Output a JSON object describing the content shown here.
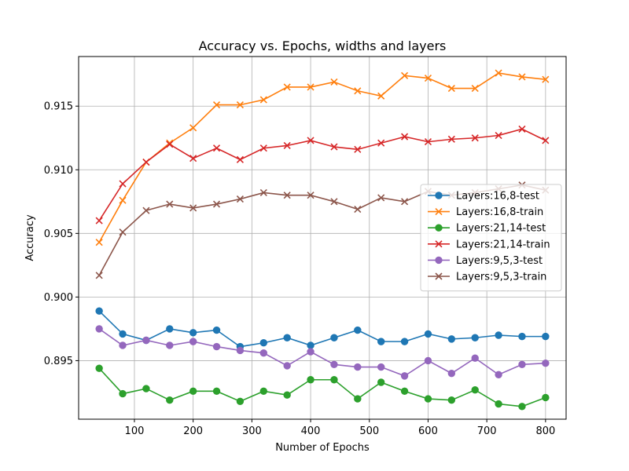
{
  "chart_data": {
    "type": "line",
    "title": "Accuracy vs. Epochs, widths and layers",
    "xlabel": "Number of Epochs",
    "ylabel": "Accuracy",
    "xlim": [
      5,
      835
    ],
    "ylim": [
      0.8904,
      0.9189
    ],
    "xticks": [
      100,
      200,
      300,
      400,
      500,
      600,
      700,
      800
    ],
    "yticks": [
      0.895,
      0.9,
      0.905,
      0.91,
      0.915
    ],
    "grid": true,
    "legend_position": "center-right",
    "x": [
      40,
      80,
      120,
      160,
      200,
      240,
      280,
      320,
      360,
      400,
      440,
      480,
      520,
      560,
      600,
      640,
      680,
      720,
      760,
      800
    ],
    "series": [
      {
        "name": "Layers:16,8-test",
        "color": "#1f77b4",
        "marker": "circle",
        "values": [
          0.8989,
          0.8971,
          0.8966,
          0.8975,
          0.8972,
          0.8974,
          0.8961,
          0.8964,
          0.8968,
          0.8962,
          0.8968,
          0.8974,
          0.8965,
          0.8965,
          0.8971,
          0.8967,
          0.8968,
          0.897,
          0.8969,
          0.8969
        ]
      },
      {
        "name": "Layers:16,8-train",
        "color": "#ff7f0e",
        "marker": "x",
        "values": [
          0.9043,
          0.9076,
          0.9106,
          0.9121,
          0.9133,
          0.9151,
          0.9151,
          0.9155,
          0.9165,
          0.9165,
          0.9169,
          0.9162,
          0.9158,
          0.9174,
          0.9172,
          0.9164,
          0.9164,
          0.9176,
          0.9173,
          0.9171
        ]
      },
      {
        "name": "Layers:21,14-test",
        "color": "#2ca02c",
        "marker": "circle",
        "values": [
          0.8944,
          0.8924,
          0.8928,
          0.8919,
          0.8926,
          0.8926,
          0.8918,
          0.8926,
          0.8923,
          0.8935,
          0.8935,
          0.892,
          0.8933,
          0.8926,
          0.892,
          0.8919,
          0.8927,
          0.8916,
          0.8914,
          0.8921
        ]
      },
      {
        "name": "Layers:21,14-train",
        "color": "#d62728",
        "marker": "x",
        "values": [
          0.906,
          0.9089,
          0.9106,
          0.912,
          0.9109,
          0.9117,
          0.9108,
          0.9117,
          0.9119,
          0.9123,
          0.9118,
          0.9116,
          0.9121,
          0.9126,
          0.9122,
          0.9124,
          0.9125,
          0.9127,
          0.9132,
          0.9123
        ]
      },
      {
        "name": "Layers:9,5,3-test",
        "color": "#9467bd",
        "marker": "circle",
        "values": [
          0.8975,
          0.8962,
          0.8966,
          0.8962,
          0.8965,
          0.8961,
          0.8958,
          0.8956,
          0.8946,
          0.8957,
          0.8947,
          0.8945,
          0.8945,
          0.8938,
          0.895,
          0.894,
          0.8952,
          0.8939,
          0.8947,
          0.8948
        ]
      },
      {
        "name": "Layers:9,5,3-train",
        "color": "#8c564b",
        "marker": "x",
        "values": [
          0.9017,
          0.9051,
          0.9068,
          0.9073,
          0.907,
          0.9073,
          0.9077,
          0.9082,
          0.908,
          0.908,
          0.9075,
          0.9069,
          0.9078,
          0.9075,
          0.9083,
          0.908,
          0.9082,
          0.9085,
          0.9088,
          0.9084
        ]
      }
    ]
  }
}
